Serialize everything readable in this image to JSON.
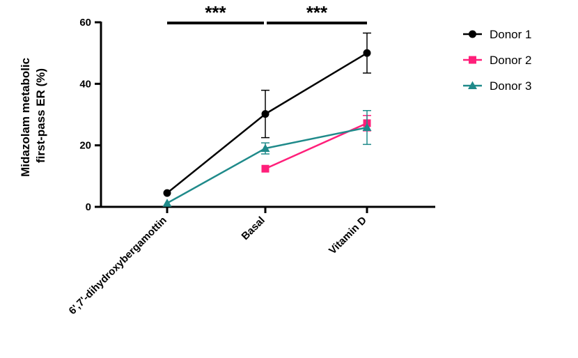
{
  "chart_data": {
    "type": "line",
    "categories": [
      "6',7'-dihydroxybergamottin",
      "Basal",
      "Vitamin D"
    ],
    "ylabel_lines": [
      "Midazolam metabolic",
      "first-pass ER (%)"
    ],
    "ylim": [
      0,
      60
    ],
    "yticks": [
      0,
      20,
      40,
      60
    ],
    "legend_position": "top-right",
    "series": [
      {
        "name": "Donor 1",
        "color": "#000000",
        "marker": "circle",
        "values": [
          4.5,
          30.2,
          50.0
        ],
        "err": [
          null,
          7.7,
          6.5
        ]
      },
      {
        "name": "Donor 2",
        "color": "#ff1f7a",
        "marker": "square",
        "values": [
          null,
          12.4,
          27.2
        ],
        "err": [
          null,
          null,
          2.5
        ]
      },
      {
        "name": "Donor 3",
        "color": "#1f8a8a",
        "marker": "triangle",
        "values": [
          1.2,
          19.0,
          25.8
        ],
        "err": [
          null,
          1.8,
          5.5
        ]
      }
    ],
    "significance": [
      {
        "from": 0,
        "to": 1,
        "label": "***"
      },
      {
        "from": 1,
        "to": 2,
        "label": "***"
      }
    ]
  }
}
